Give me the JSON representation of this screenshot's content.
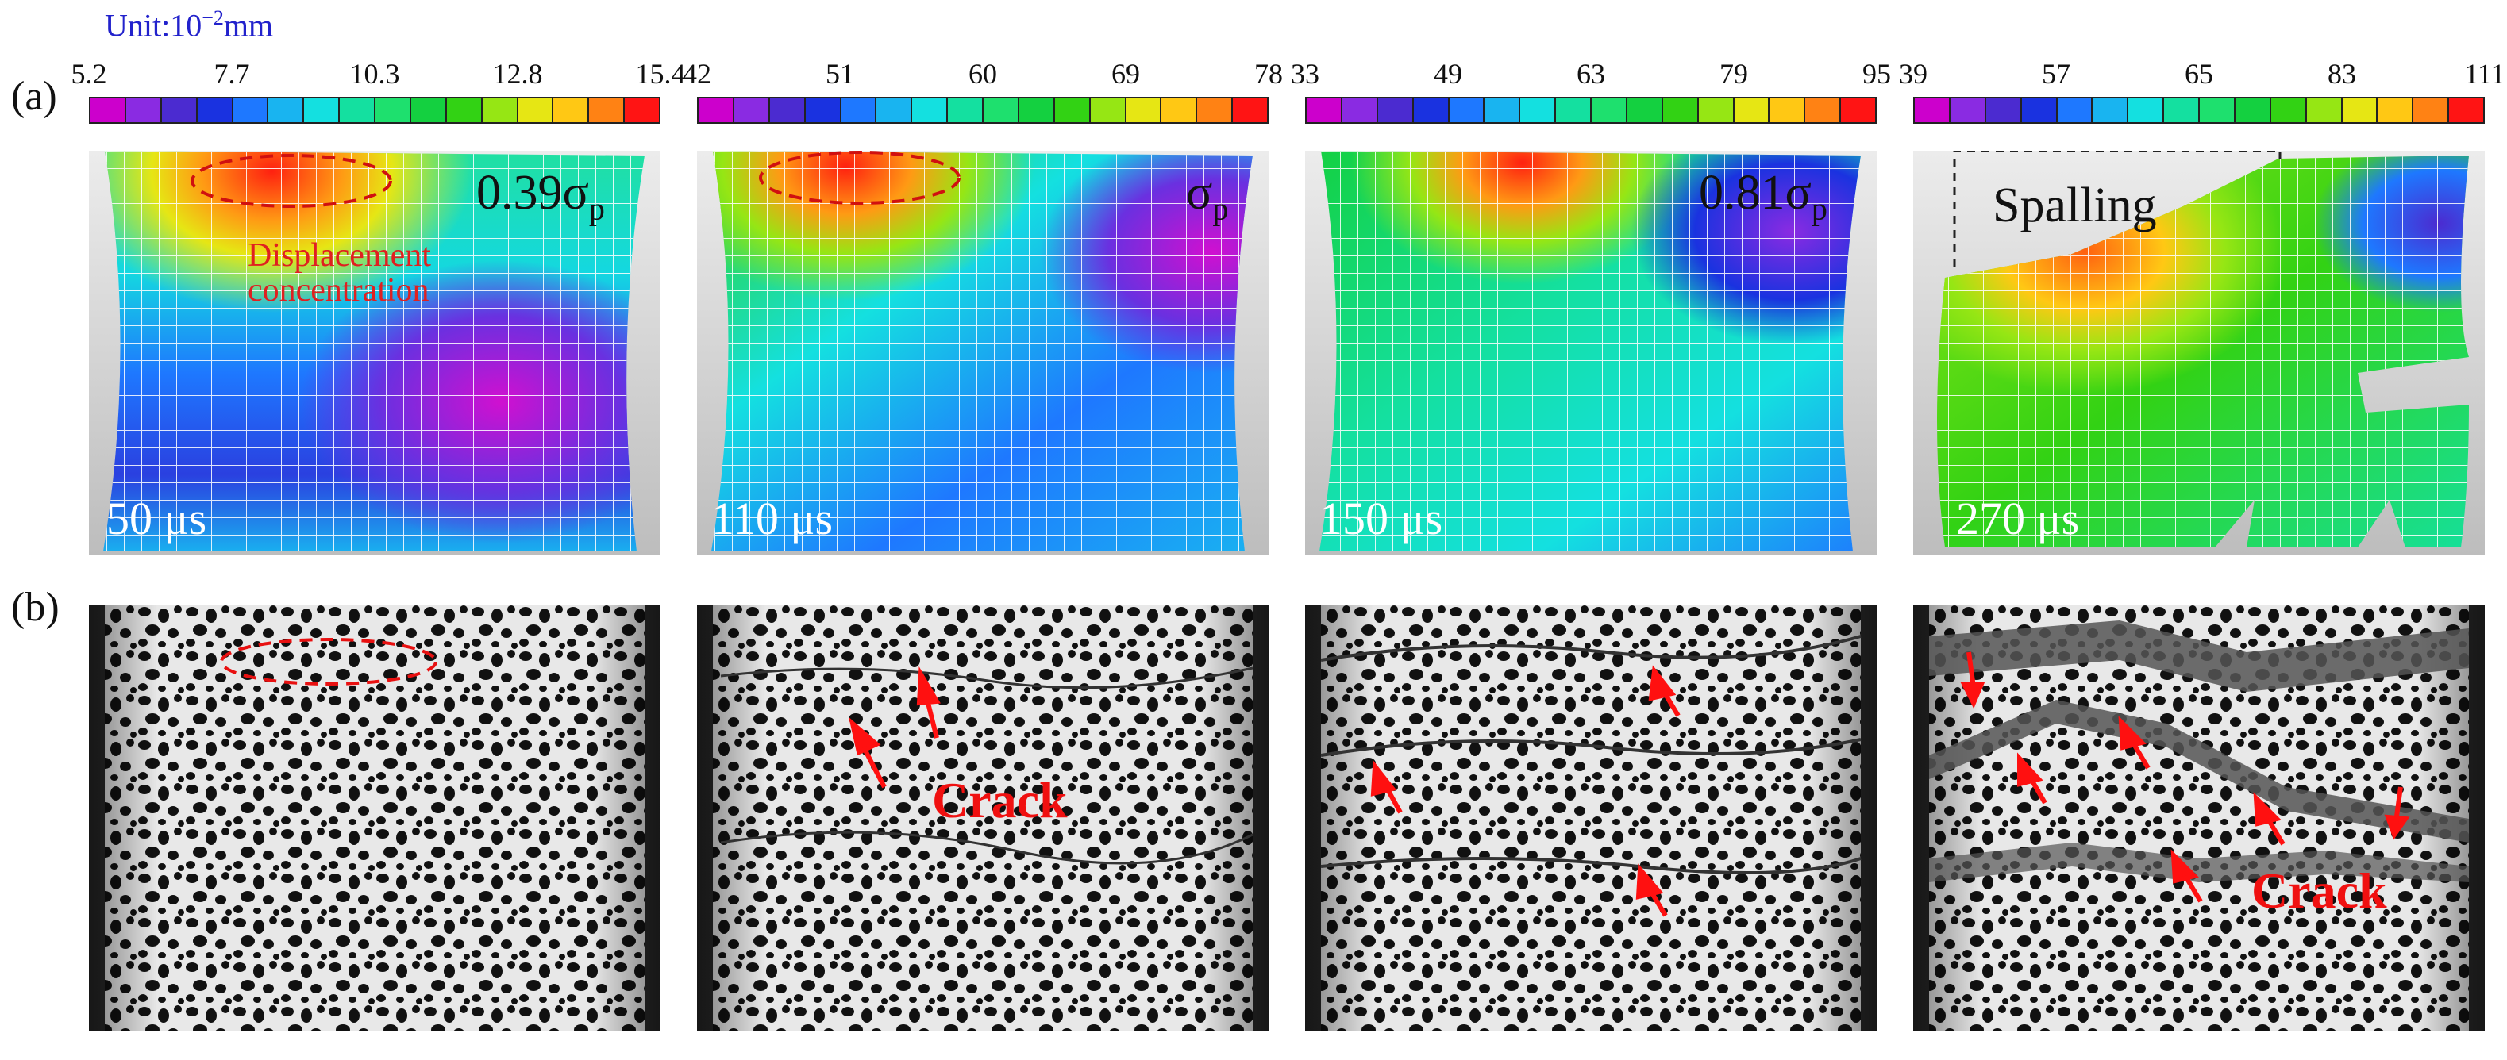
{
  "unit_label": {
    "prefix": "Unit:10",
    "exponent": "−2",
    "suffix": "mm"
  },
  "row_labels": {
    "a": "(a)",
    "b": "(b)"
  },
  "colors": {
    "scale": [
      "#cc00cc",
      "#8a2be2",
      "#4b2bd0",
      "#1a32e0",
      "#1e78ff",
      "#19b4f0",
      "#14e0e0",
      "#14e0a0",
      "#1ee06e",
      "#14d040",
      "#32d214",
      "#96e614",
      "#e6e614",
      "#ffc814",
      "#ff8214",
      "#ff1414"
    ],
    "annotation_red": "#e02020",
    "unit_blue": "#2222cc"
  },
  "panels": [
    {
      "ticks": [
        "5.2",
        "7.7",
        "10.3",
        "12.8",
        "15.4"
      ],
      "time": "50 μs",
      "stress_coef": "0.39σ",
      "stress_sub": "p"
    },
    {
      "ticks": [
        "42",
        "51",
        "60",
        "69",
        "78"
      ],
      "time": "110 μs",
      "stress_coef": "σ",
      "stress_sub": "p"
    },
    {
      "ticks": [
        "33",
        "49",
        "63",
        "79",
        "95"
      ],
      "time": "150 μs",
      "stress_coef": "0.81σ",
      "stress_sub": "p"
    },
    {
      "ticks": [
        "39",
        "57",
        "65",
        "83",
        "111"
      ],
      "time": "270 μs",
      "stress_coef": "",
      "stress_sub": ""
    }
  ],
  "annotations": {
    "displacement_line1": "Displacement",
    "displacement_line2": "concentration",
    "spalling": "Spalling",
    "crack": "Crack"
  }
}
